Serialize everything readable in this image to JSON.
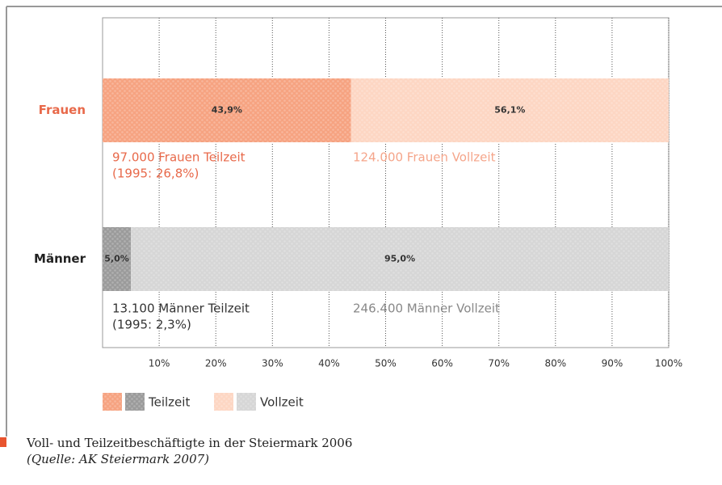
{
  "chart_data": {
    "type": "stacked-barh",
    "categories": [
      "Frauen",
      "Männer"
    ],
    "series": [
      {
        "name": "Teilzeit",
        "colors": [
          "#f6a381",
          "#9b9b9b"
        ],
        "values": [
          43.9,
          5.0
        ],
        "value_labels": [
          "43,9%",
          "5,0%"
        ]
      },
      {
        "name": "Vollzeit",
        "colors": [
          "#fdd6c3",
          "#d6d6d6"
        ],
        "values": [
          56.1,
          95.0
        ],
        "value_labels": [
          "56,1%",
          "95,0%"
        ]
      }
    ],
    "xlim": [
      0,
      100
    ],
    "xticks": [
      {
        "value": 10,
        "label": "10%"
      },
      {
        "value": 20,
        "label": "20%"
      },
      {
        "value": 30,
        "label": "30%"
      },
      {
        "value": 40,
        "label": "40%"
      },
      {
        "value": 50,
        "label": "50%"
      },
      {
        "value": 60,
        "label": "60%"
      },
      {
        "value": 70,
        "label": "70%"
      },
      {
        "value": 80,
        "label": "80%"
      },
      {
        "value": 90,
        "label": "90%"
      },
      {
        "value": 100,
        "label": "100%"
      }
    ],
    "grid": true,
    "annotations": [
      "97.000 Frauen Teilzeit",
      "(1995: 26,8%)",
      "124.000 Frauen Vollzeit",
      "13.100 Männer Teilzeit",
      "(1995: 2,3%)",
      "246.400 Männer Vollzeit"
    ],
    "caption": [
      "Voll- und Teilzeitbeschäftigte in der Steiermark 2006",
      "(Quelle: AK Steiermark 2007)"
    ]
  }
}
